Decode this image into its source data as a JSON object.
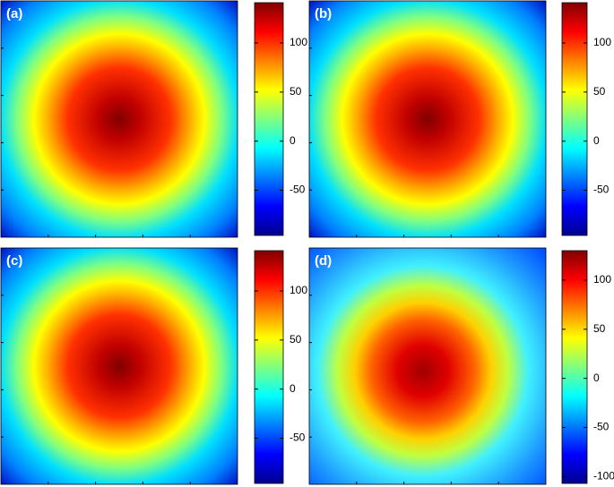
{
  "chart_data": [
    {
      "type": "heatmap",
      "label": "(a)",
      "colormap": "jet",
      "clim": [
        -96,
        141
      ],
      "cticks": [
        -50,
        0,
        50,
        100
      ]
    },
    {
      "type": "heatmap",
      "label": "(b)",
      "colormap": "jet",
      "clim": [
        -96,
        141
      ],
      "cticks": [
        -50,
        0,
        50,
        100
      ]
    },
    {
      "type": "heatmap",
      "label": "(c)",
      "colormap": "jet",
      "clim": [
        -96,
        141
      ],
      "cticks": [
        -50,
        0,
        50,
        100
      ]
    },
    {
      "type": "heatmap",
      "label": "(d)",
      "colormap": "jet",
      "clim": [
        -107,
        130
      ],
      "cticks": [
        -100,
        -50,
        0,
        50,
        100
      ]
    }
  ]
}
